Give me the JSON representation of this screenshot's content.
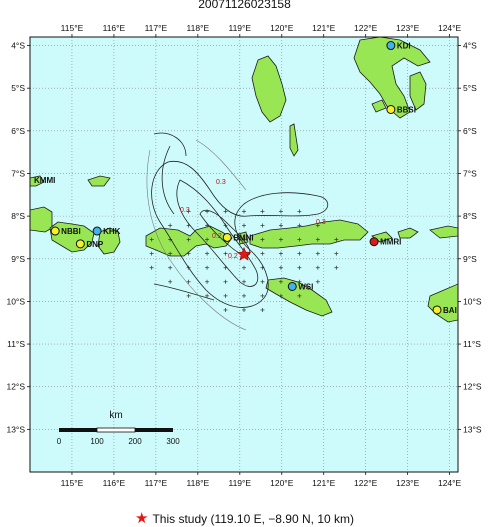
{
  "title": "20071126023158",
  "caption": {
    "star_glyph": "★",
    "text": "This study (119.10 E, −8.90 N, 10 km)"
  },
  "map": {
    "lon_range": [
      114.0,
      124.2
    ],
    "lat_range": [
      -14.0,
      -3.8
    ],
    "lon_ticks": [
      {
        "v": 115,
        "label": "115°E"
      },
      {
        "v": 116,
        "label": "116°E"
      },
      {
        "v": 117,
        "label": "117°E"
      },
      {
        "v": 118,
        "label": "118°E"
      },
      {
        "v": 119,
        "label": "119°E"
      },
      {
        "v": 120,
        "label": "120°E"
      },
      {
        "v": 121,
        "label": "121°E"
      },
      {
        "v": 122,
        "label": "122°E"
      },
      {
        "v": 123,
        "label": "123°E"
      },
      {
        "v": 124,
        "label": "124°E"
      }
    ],
    "lat_ticks": [
      {
        "v": -4,
        "label": "4°S"
      },
      {
        "v": -5,
        "label": "5°S"
      },
      {
        "v": -6,
        "label": "6°S"
      },
      {
        "v": -7,
        "label": "7°S"
      },
      {
        "v": -8,
        "label": "8°S"
      },
      {
        "v": -9,
        "label": "9°S"
      },
      {
        "v": -10,
        "label": "10°S"
      },
      {
        "v": -11,
        "label": "11°S"
      },
      {
        "v": -12,
        "label": "12°S"
      },
      {
        "v": -13,
        "label": "13°S"
      }
    ],
    "colors": {
      "sea": "#cdfafa",
      "land": "#99e655",
      "coast": "#1a1a1a",
      "star": "#e01818"
    },
    "stations": [
      {
        "name": "KDI",
        "lon": 122.6,
        "lat": -4.0,
        "color": "#3fb3ea"
      },
      {
        "name": "BBSI",
        "lon": 122.6,
        "lat": -5.5,
        "color": "#f7ef2a"
      },
      {
        "name": "NBBI",
        "lon": 114.6,
        "lat": -8.35,
        "color": "#f7ef2a"
      },
      {
        "name": "KHK",
        "lon": 115.6,
        "lat": -8.35,
        "color": "#3fb3ea"
      },
      {
        "name": "DNP",
        "lon": 115.2,
        "lat": -8.65,
        "color": "#f7ef2a"
      },
      {
        "name": "BMNI",
        "lon": 118.7,
        "lat": -8.5,
        "color": "#f7ef2a"
      },
      {
        "name": "MMRI",
        "lon": 122.2,
        "lat": -8.6,
        "color": "#e01818"
      },
      {
        "name": "WSI",
        "lon": 120.25,
        "lat": -9.65,
        "color": "#3fb3ea"
      },
      {
        "name": "BAI",
        "lon": 123.7,
        "lat": -10.2,
        "color": "#f7ef2a"
      }
    ],
    "offmap_label": "KMMI",
    "epicenter": {
      "lon": 119.1,
      "lat": -8.9
    },
    "contour_labels": [
      "0.3",
      "0.3",
      "0.3",
      "0.2",
      "0.2"
    ],
    "scale_bar": {
      "title": "km",
      "ticks": [
        "0",
        "100",
        "200",
        "300"
      ]
    }
  }
}
